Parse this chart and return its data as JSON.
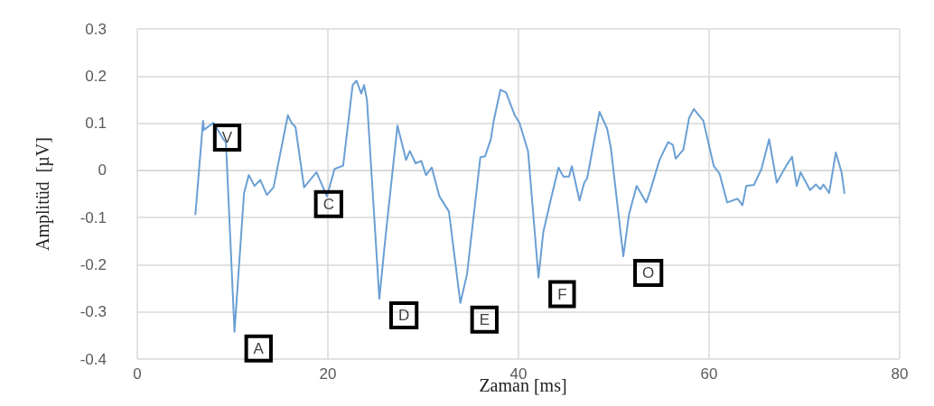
{
  "chart_data": {
    "type": "line",
    "xlabel": "Zaman [ms]",
    "ylabel": "Amplitüd  [µV]",
    "xlim": [
      0,
      80
    ],
    "xticks": [
      0,
      20,
      40,
      60,
      80
    ],
    "ylim": [
      -0.4,
      0.3
    ],
    "yticks": [
      -0.4,
      -0.3,
      -0.2,
      -0.1,
      0,
      0.1,
      0.2,
      0.3
    ],
    "grid": true,
    "marker": "none",
    "line_style": "solid",
    "series": [
      {
        "color": "#6a9fd4",
        "x": [
          6.1,
          6.9,
          7.0,
          8.0,
          9.0,
          9.3,
          10.2,
          11.2,
          11.7,
          12.3,
          12.9,
          13.6,
          14.3,
          15.8,
          16.2,
          16.6,
          17.5,
          18.8,
          19.9,
          20.7,
          21.6,
          22.6,
          23.0,
          23.5,
          23.8,
          24.1,
          25.4,
          26.0,
          27.3,
          28.2,
          28.6,
          29.2,
          29.8,
          30.3,
          30.9,
          31.7,
          32.7,
          33.9,
          34.6,
          36.0,
          36.5,
          37.1,
          37.4,
          38.1,
          38.7,
          39.6,
          40.1,
          41.0,
          42.1,
          42.6,
          43.4,
          44.2,
          44.7,
          45.3,
          45.6,
          46.4,
          46.9,
          47.2,
          48.5,
          49.3,
          49.7,
          51.0,
          51.6,
          52.4,
          53.4,
          53.8,
          54.8,
          55.7,
          56.2,
          56.5,
          57.3,
          57.9,
          58.4,
          59.4,
          60.5,
          61.1,
          61.9,
          63.0,
          63.5,
          63.9,
          64.7,
          65.5,
          66.3,
          67.1,
          68.1,
          68.7,
          69.2,
          69.6,
          70.6,
          71.2,
          71.7,
          72.0,
          72.6,
          73.3,
          73.9,
          74.2
        ],
        "values": [
          -0.093,
          0.105,
          0.086,
          0.101,
          0.067,
          0.06,
          -0.342,
          -0.048,
          -0.01,
          -0.033,
          -0.02,
          -0.052,
          -0.036,
          0.117,
          0.1,
          0.092,
          -0.036,
          -0.004,
          -0.055,
          0.003,
          0.01,
          0.181,
          0.19,
          0.163,
          0.181,
          0.149,
          -0.272,
          -0.15,
          0.095,
          0.022,
          0.041,
          0.015,
          0.02,
          -0.01,
          0.006,
          -0.055,
          -0.087,
          -0.281,
          -0.22,
          0.028,
          0.03,
          0.066,
          0.105,
          0.171,
          0.165,
          0.117,
          0.101,
          0.041,
          -0.227,
          -0.131,
          -0.061,
          0.006,
          -0.013,
          -0.013,
          0.009,
          -0.064,
          -0.026,
          -0.017,
          0.124,
          0.089,
          0.047,
          -0.182,
          -0.093,
          -0.033,
          -0.068,
          -0.045,
          0.022,
          0.06,
          0.054,
          0.025,
          0.044,
          0.111,
          0.13,
          0.105,
          0.009,
          -0.007,
          -0.068,
          -0.06,
          -0.074,
          -0.033,
          -0.031,
          0.003,
          0.066,
          -0.026,
          0.01,
          0.029,
          -0.033,
          -0.004,
          -0.042,
          -0.03,
          -0.04,
          -0.03,
          -0.048,
          0.038,
          -0.004,
          -0.048
        ]
      }
    ],
    "annotations": [
      {
        "text": "V",
        "x": 6.9,
        "y": 0.105
      },
      {
        "text": "A",
        "x": 10.2,
        "y": -0.342
      },
      {
        "text": "C",
        "x": 17.5,
        "y": -0.036
      },
      {
        "text": "D",
        "x": 25.4,
        "y": -0.272
      },
      {
        "text": "E",
        "x": 33.9,
        "y": -0.281
      },
      {
        "text": "F",
        "x": 42.1,
        "y": -0.227
      },
      {
        "text": "O",
        "x": 51.0,
        "y": -0.182
      }
    ]
  }
}
